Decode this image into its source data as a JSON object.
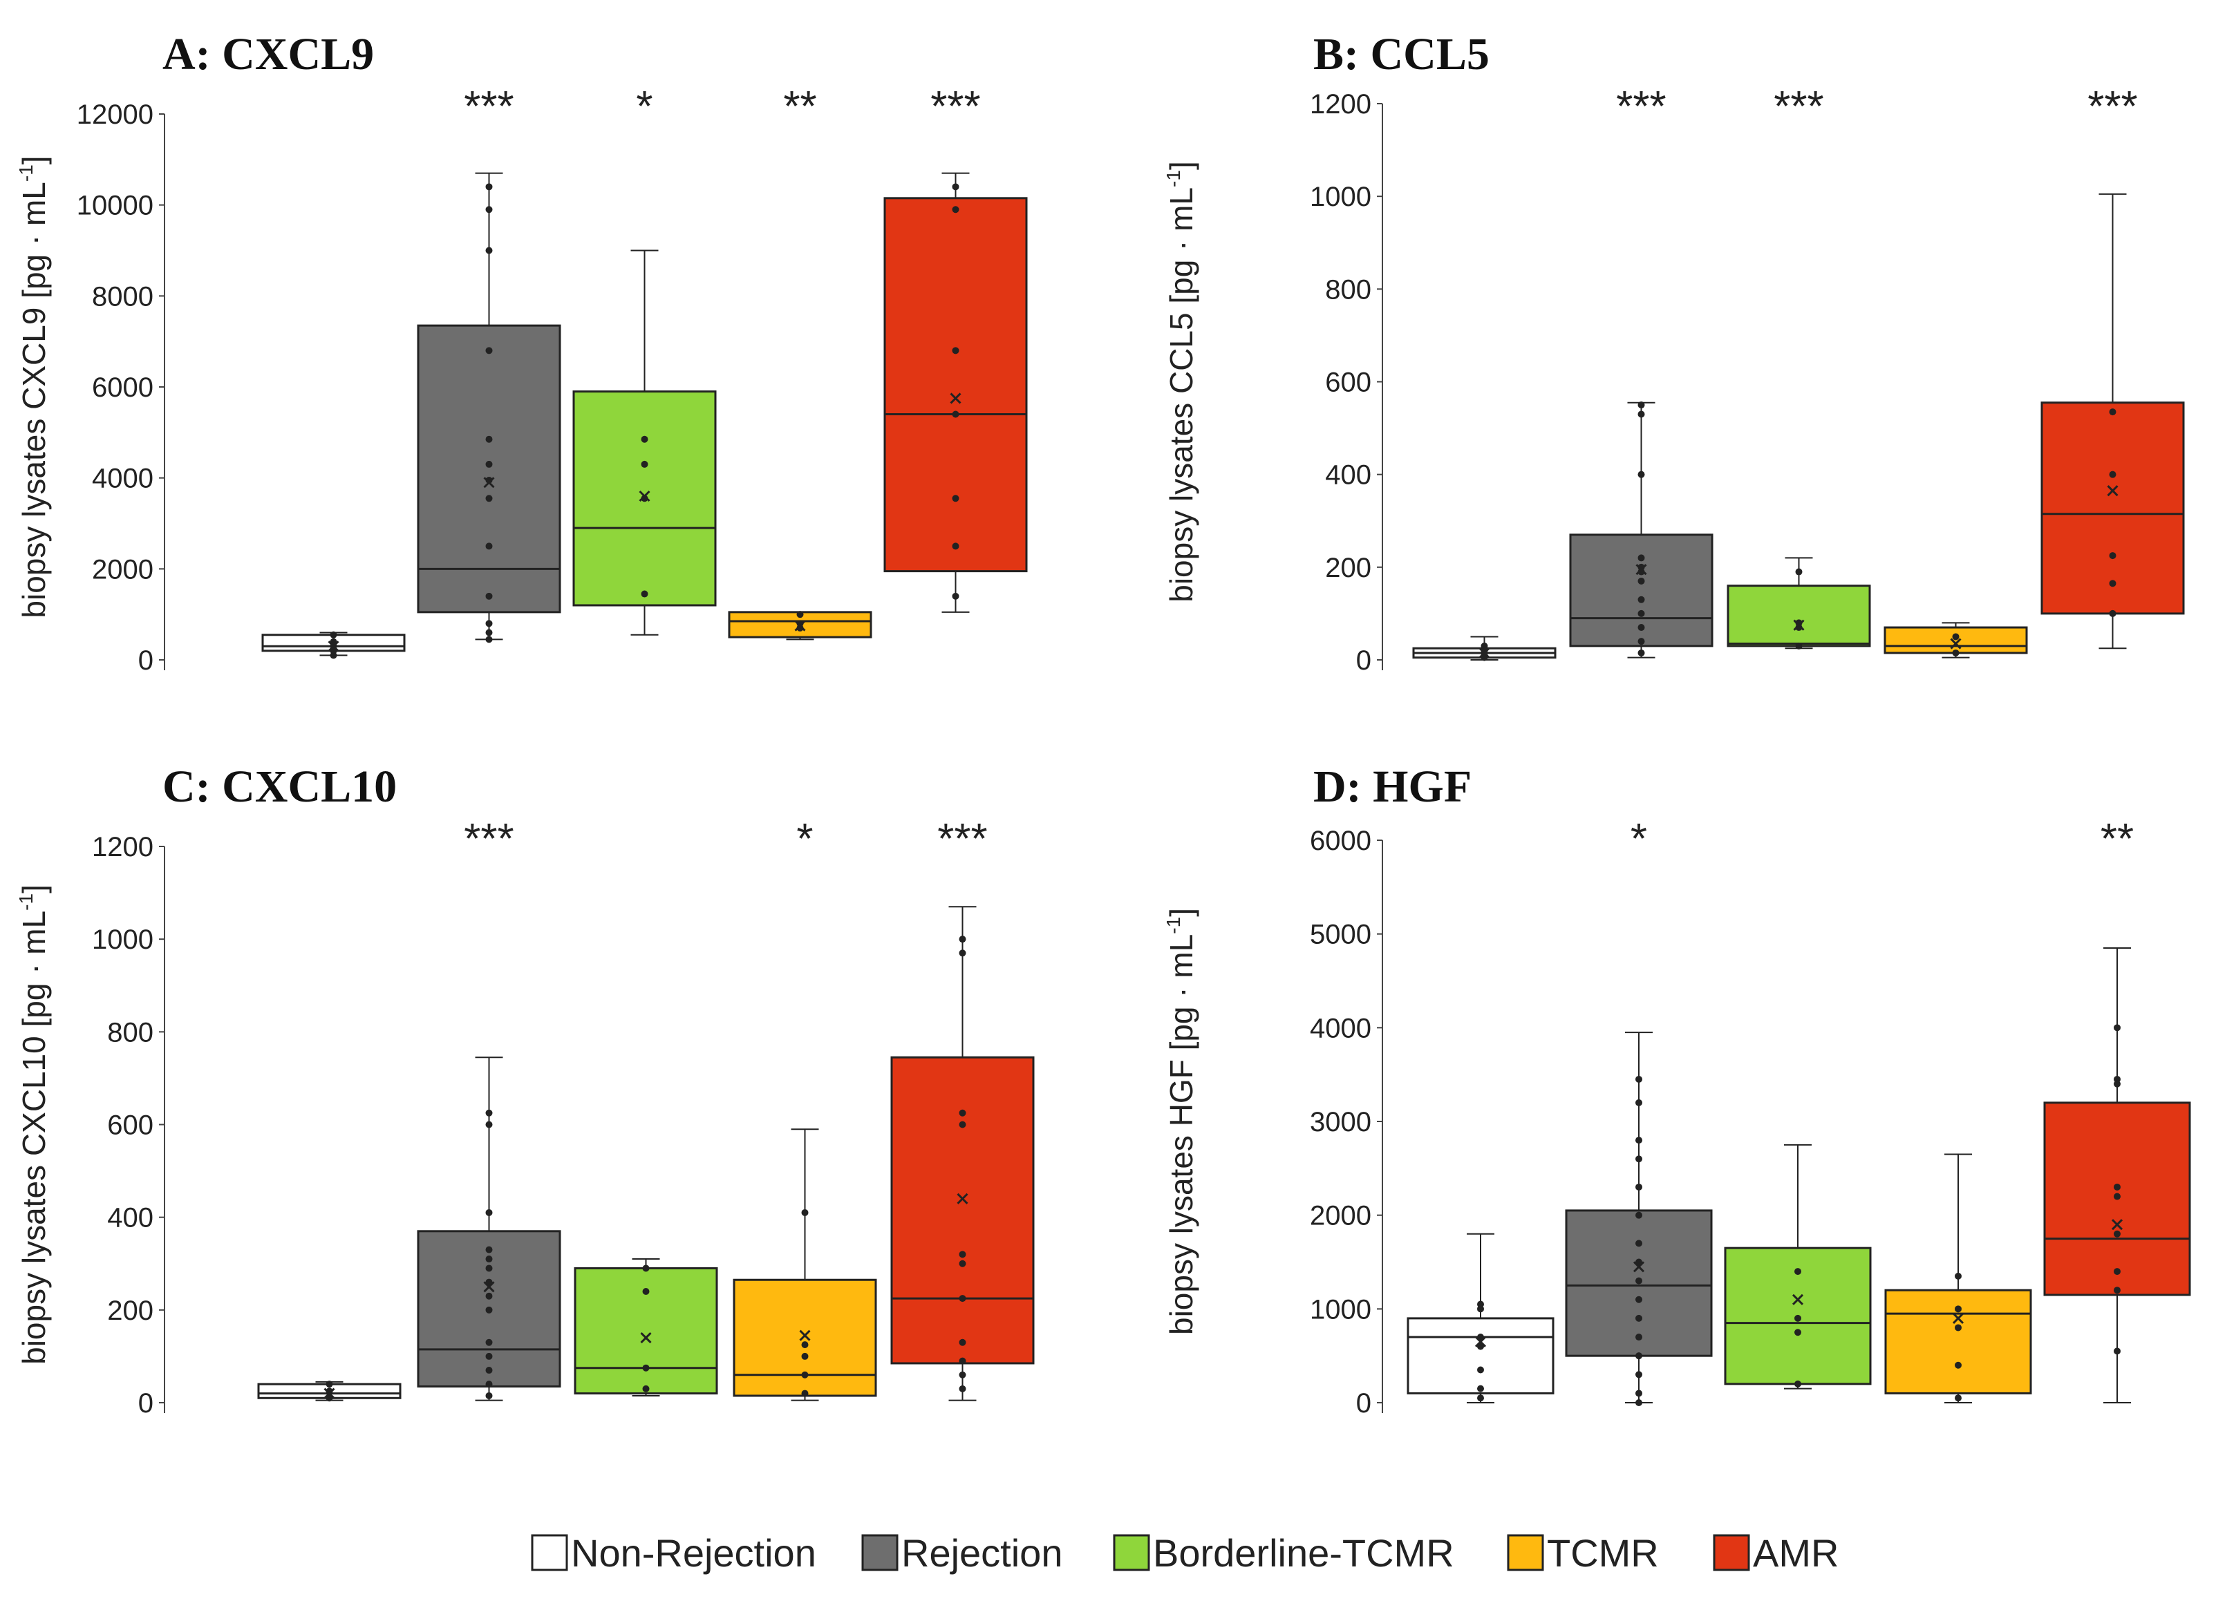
{
  "legend": [
    {
      "label": "Non-Rejection",
      "color": "#ffffff"
    },
    {
      "label": "Rejection",
      "color": "#6e6e6e"
    },
    {
      "label": "Borderline-TCMR",
      "color": "#8fd63b"
    },
    {
      "label": "TCMR",
      "color": "#ffb90f"
    },
    {
      "label": "AMR",
      "color": "#e13614"
    }
  ],
  "chart_data": [
    {
      "type": "box",
      "title": "A: CXCL9",
      "ylabel": "biopsy lysates CXCL9 [pg · mL",
      "ylabel_exp": "-1",
      "ylabel_close": "]",
      "ylim": [
        0,
        12000
      ],
      "yticks": [
        0,
        2000,
        4000,
        6000,
        8000,
        10000,
        12000
      ],
      "yticklabels": [
        "0",
        "2000",
        "4000",
        "6000",
        "8000",
        "10000",
        "12000"
      ],
      "categories": [
        "Non-Rejection",
        "Rejection",
        "Borderline-TCMR",
        "TCMR",
        "AMR"
      ],
      "significance": [
        "",
        "***",
        "*",
        "**",
        "***"
      ],
      "boxes": [
        {
          "min": 100,
          "q1": 200,
          "median": 300,
          "q3": 550,
          "max": 600,
          "mean": 300,
          "points": [
            100,
            200,
            300,
            400,
            550
          ]
        },
        {
          "min": 450,
          "q1": 1050,
          "median": 2000,
          "q3": 7350,
          "max": 10700,
          "mean": 3900,
          "points": [
            450,
            600,
            800,
            1400,
            2500,
            3550,
            3950,
            4300,
            4850,
            6800,
            9000,
            9900,
            10400
          ]
        },
        {
          "min": 550,
          "q1": 1200,
          "median": 2900,
          "q3": 5900,
          "max": 9000,
          "mean": 3600,
          "points": [
            1450,
            3550,
            4300,
            4850
          ]
        },
        {
          "min": 450,
          "q1": 500,
          "median": 850,
          "q3": 1050,
          "max": 1050,
          "mean": 750,
          "points": [
            700,
            800,
            1000
          ]
        },
        {
          "min": 1050,
          "q1": 1950,
          "median": 5400,
          "q3": 10150,
          "max": 10700,
          "mean": 5750,
          "points": [
            1400,
            2500,
            3550,
            5400,
            6800,
            9900,
            10400
          ]
        }
      ]
    },
    {
      "type": "box",
      "title": "B: CCL5",
      "ylabel": "biopsy lysates CCL5 [pg · mL",
      "ylabel_exp": "-1",
      "ylabel_close": "]",
      "ylim": [
        0,
        1200
      ],
      "yticks": [
        0,
        200,
        400,
        600,
        800,
        1000,
        1200
      ],
      "yticklabels": [
        "0",
        "200",
        "400",
        "600",
        "800",
        "1000",
        "1200"
      ],
      "categories": [
        "Non-Rejection",
        "Rejection",
        "Borderline-TCMR",
        "TCMR",
        "AMR"
      ],
      "significance": [
        "",
        "***",
        "***",
        "",
        "***"
      ],
      "boxes": [
        {
          "min": 0,
          "q1": 5,
          "median": 15,
          "q3": 25,
          "max": 50,
          "mean": 15,
          "points": [
            5,
            10,
            20,
            30
          ]
        },
        {
          "min": 5,
          "q1": 30,
          "median": 90,
          "q3": 270,
          "max": 555,
          "mean": 195,
          "points": [
            15,
            40,
            70,
            100,
            130,
            170,
            190,
            200,
            220,
            400,
            530,
            550
          ]
        },
        {
          "min": 25,
          "q1": 30,
          "median": 35,
          "q3": 160,
          "max": 220,
          "mean": 75,
          "points": [
            30,
            70,
            80,
            190
          ]
        },
        {
          "min": 5,
          "q1": 15,
          "median": 30,
          "q3": 70,
          "max": 80,
          "mean": 35,
          "points": [
            15,
            50
          ]
        },
        {
          "min": 25,
          "q1": 100,
          "median": 315,
          "q3": 555,
          "max": 1005,
          "mean": 365,
          "points": [
            100,
            165,
            225,
            400,
            535
          ]
        }
      ]
    },
    {
      "type": "box",
      "title": "C: CXCL10",
      "ylabel": "biopsy lysates CXCL10 [pg · mL",
      "ylabel_exp": "-1",
      "ylabel_close": "]",
      "ylim": [
        0,
        1200
      ],
      "yticks": [
        0,
        200,
        400,
        600,
        800,
        1000,
        1200
      ],
      "yticklabels": [
        "0",
        "200",
        "400",
        "600",
        "800",
        "1000",
        "1200"
      ],
      "categories": [
        "Non-Rejection",
        "Rejection",
        "Borderline-TCMR",
        "TCMR",
        "AMR"
      ],
      "significance": [
        "",
        "***",
        "",
        "*",
        "***"
      ],
      "boxes": [
        {
          "min": 5,
          "q1": 10,
          "median": 20,
          "q3": 40,
          "max": 45,
          "mean": 20,
          "points": [
            10,
            25,
            40
          ]
        },
        {
          "min": 5,
          "q1": 35,
          "median": 115,
          "q3": 370,
          "max": 745,
          "mean": 250,
          "points": [
            15,
            40,
            70,
            100,
            130,
            200,
            230,
            260,
            290,
            310,
            330,
            410,
            600,
            625
          ]
        },
        {
          "min": 15,
          "q1": 20,
          "median": 75,
          "q3": 290,
          "max": 310,
          "mean": 140,
          "points": [
            30,
            75,
            240,
            290
          ]
        },
        {
          "min": 5,
          "q1": 15,
          "median": 60,
          "q3": 265,
          "max": 590,
          "mean": 145,
          "points": [
            20,
            60,
            100,
            125,
            410
          ]
        },
        {
          "min": 5,
          "q1": 85,
          "median": 225,
          "q3": 745,
          "max": 1070,
          "mean": 440,
          "points": [
            30,
            60,
            90,
            130,
            225,
            300,
            320,
            600,
            625,
            970,
            1000
          ]
        }
      ]
    },
    {
      "type": "box",
      "title": "D: HGF",
      "ylabel": "biopsy lysates HGF [pg · mL",
      "ylabel_exp": "-1",
      "ylabel_close": "]",
      "ylim": [
        0,
        6000
      ],
      "yticks": [
        0,
        1000,
        2000,
        3000,
        4000,
        5000,
        6000
      ],
      "yticklabels": [
        "0",
        "1000",
        "2000",
        "3000",
        "4000",
        "5000",
        "6000"
      ],
      "categories": [
        "Non-Rejection",
        "Rejection",
        "Borderline-TCMR",
        "TCMR",
        "AMR"
      ],
      "significance": [
        "",
        "*",
        "",
        "",
        "**"
      ],
      "boxes": [
        {
          "min": 0,
          "q1": 100,
          "median": 700,
          "q3": 900,
          "max": 1800,
          "mean": 650,
          "points": [
            50,
            150,
            350,
            600,
            700,
            1000,
            1050
          ]
        },
        {
          "min": 0,
          "q1": 500,
          "median": 1250,
          "q3": 2050,
          "max": 3950,
          "mean": 1450,
          "points": [
            0,
            100,
            300,
            500,
            700,
            900,
            1100,
            1300,
            1500,
            1700,
            2000,
            2300,
            2600,
            2800,
            3200,
            3450
          ]
        },
        {
          "min": 150,
          "q1": 200,
          "median": 850,
          "q3": 1650,
          "max": 2750,
          "mean": 1100,
          "points": [
            200,
            750,
            900,
            1400
          ]
        },
        {
          "min": 0,
          "q1": 100,
          "median": 950,
          "q3": 1200,
          "max": 2650,
          "mean": 900,
          "points": [
            50,
            400,
            800,
            1000,
            1350
          ]
        },
        {
          "min": 0,
          "q1": 1150,
          "median": 1750,
          "q3": 3200,
          "max": 4850,
          "mean": 1900,
          "points": [
            550,
            1200,
            1400,
            1800,
            2200,
            2300,
            3400,
            3450,
            4000
          ]
        }
      ]
    }
  ]
}
